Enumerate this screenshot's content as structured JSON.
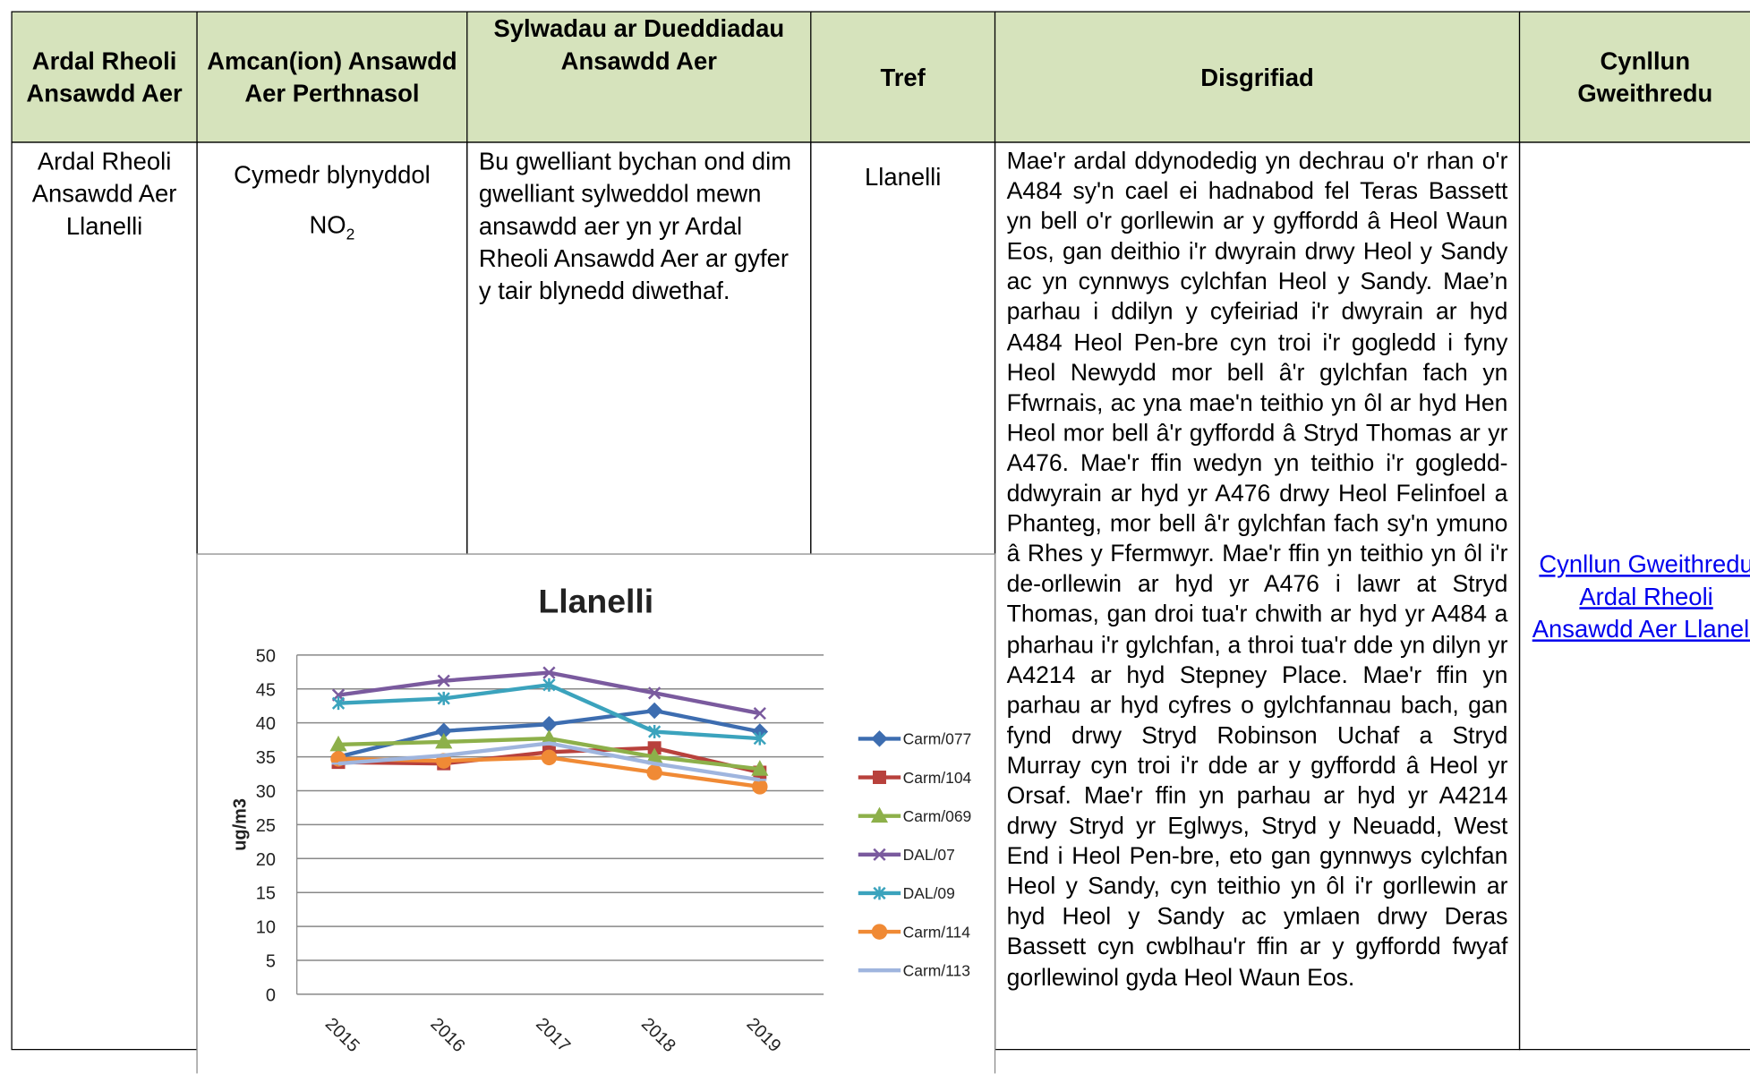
{
  "table": {
    "headers": [
      "Ardal Rheoli Ansawdd Aer",
      "Amcan(ion) Ansawdd Aer Perthnasol",
      "Sylwadau ar Dueddiadau Ansawdd Aer",
      "Tref",
      "Disgrifiad",
      "Cynllun Gweithredu"
    ],
    "rows": [
      {
        "area": "Ardal Rheoli Ansawdd Aer Llanelli",
        "objective": "Cymedr blynyddol",
        "pollutant": "NO",
        "pollutant_sub": "2",
        "trends": "Bu gwelliant bychan ond dim gwelliant sylweddol mewn ansawdd aer yn yr Ardal Rheoli Ansawdd Aer ar gyfer y tair blynedd diwethaf.",
        "town": "Llanelli",
        "description": "Mae'r ardal ddynodedig yn dechrau o'r rhan o'r A484 sy'n cael ei hadnabod fel Teras Bassett yn bell o'r gorllewin ar y gyffordd â Heol Waun Eos, gan deithio i'r dwyrain drwy Heol y Sandy ac yn cynnwys cylchfan Heol y Sandy. Mae’n parhau i ddilyn y cyfeiriad i'r dwyrain ar hyd A484 Heol Pen-bre cyn troi i'r gogledd i fyny Heol Newydd mor bell â'r gylchfan fach yn Ffwrnais, ac yna mae'n teithio yn ôl ar hyd Hen Heol mor bell â'r gyffordd â Stryd Thomas ar yr A476. Mae'r ffin wedyn yn teithio i'r gogledd-ddwyrain ar hyd yr A476 drwy Heol Felinfoel a Phanteg, mor bell â'r gylchfan fach sy'n ymuno â Rhes y Ffermwyr. Mae'r ffin yn teithio yn ôl i'r de-orllewin ar hyd yr A476 i lawr at Stryd Thomas, gan droi tua'r chwith ar hyd yr A484 a pharhau i'r gylchfan, a throi tua'r dde yn dilyn yr A4214 ar hyd Stepney Place. Mae'r ffin yn parhau ar hyd cyfres o gylchfannau bach, gan fynd drwy Stryd Robinson Uchaf a Stryd Murray cyn troi i'r dde ar y gyffordd â Heol yr Orsaf. Mae'r ffin yn parhau ar hyd yr A4214 drwy Stryd yr Eglwys, Stryd y Neuadd, West End i Heol Pen-bre, eto gan gynnwys cylchfan Heol y Sandy, cyn teithio yn ôl i'r gorllewin ar hyd Heol y Sandy ac ymlaen drwy Deras Bassett cyn cwblhau'r ffin ar y gyffordd fwyaf gorllewinol gyda Heol Waun Eos.",
        "action_plan": "Cynllun Gweithredu Ardal Rheoli Ansawdd Aer Llanelli"
      }
    ]
  },
  "chart_data": {
    "type": "line",
    "title": "Llanelli",
    "y_label": "ug/m3",
    "categories": [
      "2015",
      "2016",
      "2017",
      "2018",
      "2019"
    ],
    "series": [
      {
        "name": "Carm/077",
        "color": "#3d6db0",
        "values": [
          35,
          38.8,
          39.8,
          41.8,
          38.7
        ]
      },
      {
        "name": "Carm/104",
        "color": "#b8413c",
        "values": [
          34.2,
          34,
          35.7,
          36.3,
          32.7
        ]
      },
      {
        "name": "Carm/069",
        "color": "#8db04a",
        "values": [
          36.8,
          37.2,
          37.7,
          35,
          33.2
        ]
      },
      {
        "name": "DAL/07",
        "color": "#7a5a9e",
        "values": [
          44.1,
          46.2,
          47.4,
          44.4,
          41.4
        ]
      },
      {
        "name": "DAL/09",
        "color": "#3ba3bd",
        "values": [
          42.9,
          43.6,
          45.6,
          38.7,
          37.7
        ]
      },
      {
        "name": "Carm/114",
        "color": "#f08a35",
        "values": [
          34.7,
          34.4,
          34.9,
          32.7,
          30.6
        ]
      },
      {
        "name": "Carm/113",
        "color": "#9fb5de",
        "values": [
          34,
          35.2,
          37,
          34,
          31.6
        ]
      }
    ],
    "ylim": [
      0,
      50
    ],
    "yticks": [
      0,
      5,
      10,
      15,
      20,
      25,
      30,
      35,
      40,
      45,
      50
    ],
    "grid": true
  }
}
